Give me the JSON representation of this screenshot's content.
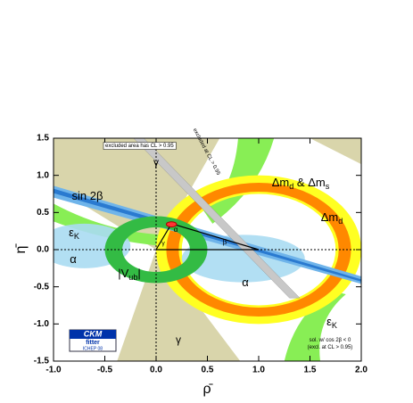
{
  "chart_data": {
    "type": "constraint-plot",
    "xlabel": "ρ̄",
    "ylabel": "η̄",
    "xlim": [
      -1,
      2
    ],
    "ylim": [
      -1.5,
      1.5
    ],
    "xticks": [
      {
        "value": -1,
        "label": "-1.0"
      },
      -0.5,
      {
        "value": 0,
        "label": "0.0"
      },
      0.5,
      {
        "value": 1,
        "label": "1.0"
      },
      1.5,
      {
        "value": 2,
        "label": "2.0"
      }
    ],
    "yticks": [
      -1.5,
      {
        "value": -1,
        "label": "-1.0"
      },
      -0.5,
      {
        "value": 0,
        "label": "0.0"
      },
      0.5,
      {
        "value": 1,
        "label": "1.0"
      },
      1.5
    ],
    "annotations": [
      {
        "parts": [
          {
            "text": "excluded area has CL > 0.95"
          }
        ]
      },
      {
        "parts": [
          {
            "text": "γ"
          }
        ]
      },
      {
        "parts": [
          {
            "text": "sin 2β"
          }
        ]
      },
      {
        "parts": [
          {
            "text": "ε"
          },
          {
            "sub": "K"
          }
        ]
      },
      {
        "parts": [
          {
            "text": "α"
          }
        ]
      },
      {
        "parts": [
          {
            "text": "|V"
          },
          {
            "sub": "ub"
          },
          {
            "text": "|"
          }
        ]
      },
      {
        "parts": [
          {
            "text": "Δm"
          },
          {
            "sub": "d"
          },
          {
            "text": " & Δm"
          },
          {
            "sub": "s"
          }
        ]
      },
      {
        "parts": [
          {
            "text": "Δm"
          },
          {
            "sub": "d"
          }
        ]
      },
      {
        "parts": [
          {
            "text": "α"
          }
        ]
      },
      {
        "parts": [
          {
            "text": "ε"
          },
          {
            "sub": "K"
          }
        ]
      },
      {
        "parts": [
          {
            "text": "γ"
          }
        ]
      },
      {
        "parts": [
          {
            "text": "sol. w/ cos 2β < 0"
          }
        ]
      },
      {
        "parts": [
          {
            "text": "(excl. at CL > 0.95)"
          }
        ]
      },
      {
        "parts": [
          {
            "text": "excluded at CL > 0.95"
          }
        ]
      },
      {
        "parts": [
          {
            "text": "α"
          }
        ]
      },
      {
        "parts": [
          {
            "text": "β"
          }
        ]
      },
      {
        "parts": [
          {
            "text": "γ"
          }
        ]
      }
    ],
    "logo": {
      "title": "CKM",
      "subtitle": "fitter",
      "conference": "ICHEP 08"
    }
  }
}
